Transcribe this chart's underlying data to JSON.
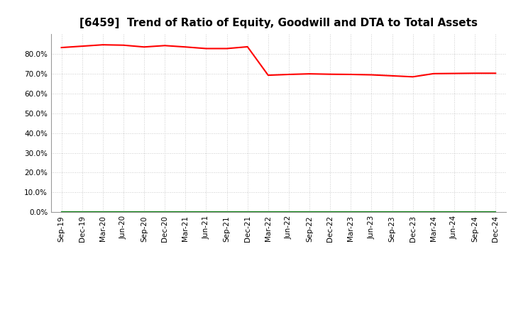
{
  "title": "[6459]  Trend of Ratio of Equity, Goodwill and DTA to Total Assets",
  "x_labels": [
    "Sep-19",
    "Dec-19",
    "Mar-20",
    "Jun-20",
    "Sep-20",
    "Dec-20",
    "Mar-21",
    "Jun-21",
    "Sep-21",
    "Dec-21",
    "Mar-22",
    "Jun-22",
    "Sep-22",
    "Dec-22",
    "Mar-23",
    "Jun-23",
    "Sep-23",
    "Dec-23",
    "Mar-24",
    "Jun-24",
    "Sep-24",
    "Dec-24"
  ],
  "equity": [
    0.833,
    0.84,
    0.847,
    0.845,
    0.836,
    0.843,
    0.836,
    0.828,
    0.828,
    0.837,
    0.693,
    0.697,
    0.7,
    0.698,
    0.697,
    0.695,
    0.69,
    0.685,
    0.701,
    0.702,
    0.703,
    0.703
  ],
  "goodwill": [
    0.0,
    0.0,
    0.0,
    0.0,
    0.0,
    0.0,
    0.0,
    0.0,
    0.0,
    0.0,
    0.0,
    0.0,
    0.0,
    0.0,
    0.0,
    0.0,
    0.0,
    0.0,
    0.0,
    0.0,
    0.0,
    0.0
  ],
  "dta": [
    0.0,
    0.0,
    0.0,
    0.0,
    0.0,
    0.0,
    0.0,
    0.0,
    0.0,
    0.0,
    0.0,
    0.0,
    0.0,
    0.0,
    0.0,
    0.0,
    0.0,
    0.0,
    0.0,
    0.0,
    0.0,
    0.0
  ],
  "equity_color": "#ff0000",
  "goodwill_color": "#0000ff",
  "dta_color": "#008000",
  "ylim": [
    0.0,
    0.9
  ],
  "yticks": [
    0.0,
    0.1,
    0.2,
    0.3,
    0.4,
    0.5,
    0.6,
    0.7,
    0.8
  ],
  "background_color": "#ffffff",
  "grid_color": "#cccccc",
  "title_fontsize": 11,
  "tick_fontsize": 7.5,
  "legend_fontsize": 9
}
